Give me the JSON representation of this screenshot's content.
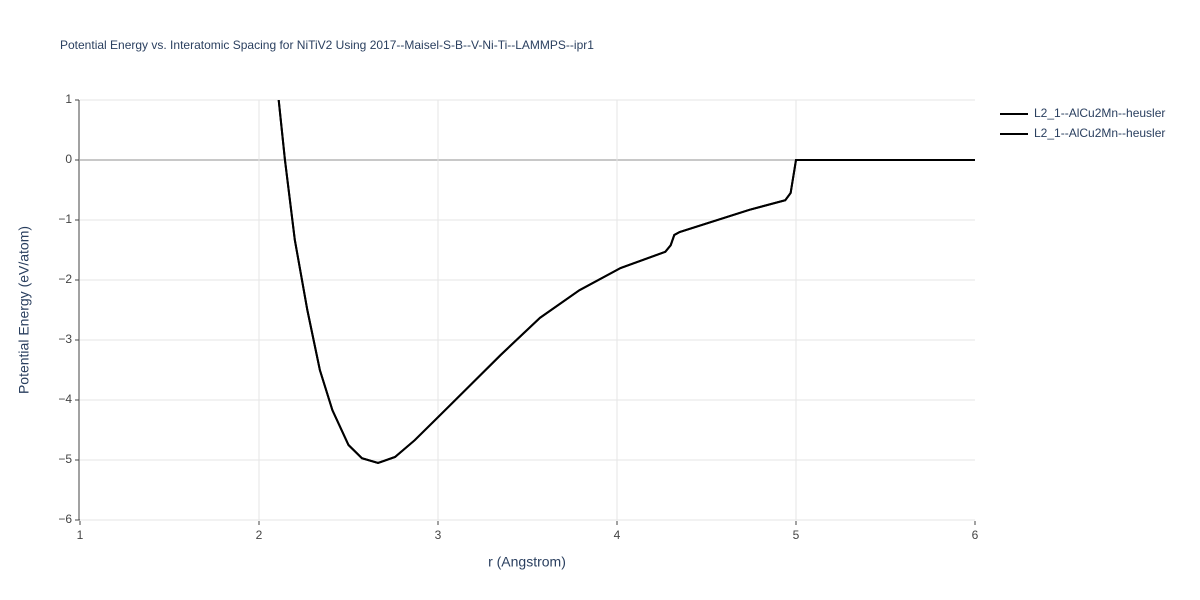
{
  "chart_data": {
    "type": "line",
    "title": "Potential Energy vs. Interatomic Spacing for NiTiV2 Using 2017--Maisel-S-B--V-Ni-Ti--LAMMPS--ipr1",
    "x_label": "r (Angstrom)",
    "y_label": "Potential Energy (eV/atom)",
    "x": [
      2.11,
      2.145,
      2.2,
      2.27,
      2.34,
      2.41,
      2.5,
      2.575,
      2.665,
      2.76,
      2.87,
      3.07,
      3.35,
      3.57,
      3.79,
      4.02,
      4.27,
      4.3,
      4.32,
      4.35,
      4.74,
      4.94,
      4.97,
      5.0,
      6.0
    ],
    "series": [
      {
        "name": "L2_1--AlCu2Mn--heusler",
        "color": "#000000",
        "values": [
          1.0,
          0,
          -1.33,
          -2.5,
          -3.5,
          -4.17,
          -4.75,
          -4.97,
          -5.05,
          -4.95,
          -4.67,
          -4.08,
          -3.25,
          -2.63,
          -2.17,
          -1.8,
          -1.53,
          -1.42,
          -1.25,
          -1.2,
          -0.83,
          -0.67,
          -0.55,
          0,
          0
        ]
      },
      {
        "name": "L2_1--AlCu2Mn--heusler",
        "color": "#000000",
        "values": [
          1.0,
          0,
          -1.33,
          -2.5,
          -3.5,
          -4.17,
          -4.75,
          -4.97,
          -5.05,
          -4.95,
          -4.67,
          -4.08,
          -3.25,
          -2.63,
          -2.17,
          -1.8,
          -1.53,
          -1.42,
          -1.25,
          -1.2,
          -0.83,
          -0.67,
          -0.55,
          0,
          0
        ]
      }
    ],
    "xlim": [
      1,
      6
    ],
    "xticks": [
      1,
      2,
      3,
      4,
      5,
      6
    ],
    "ylim": [
      -6,
      1
    ],
    "yticks": [
      {
        "value": -6,
        "label": "−6"
      },
      {
        "value": -5,
        "label": "−5"
      },
      {
        "value": -4,
        "label": "−4"
      },
      {
        "value": -3,
        "label": "−3"
      },
      {
        "value": -2,
        "label": "−2"
      },
      {
        "value": -1,
        "label": "−1"
      },
      0,
      1
    ],
    "grid": true,
    "legend": "right"
  }
}
